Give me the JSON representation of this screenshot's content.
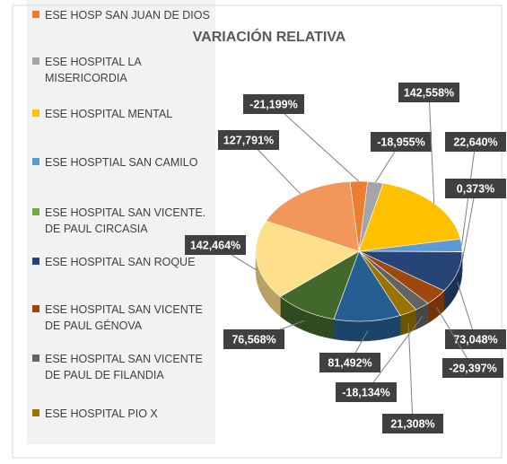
{
  "chart_data": {
    "type": "pie",
    "title": "VARIACIÓN RELATIVA",
    "categories": [
      "ESE HOSP SAN JUAN DE DIOS",
      "ESE HOSPITAL LA MISERICORDIA",
      "ESE HOSPITAL MENTAL",
      "ESE HOSPTIAL SAN CAMILO",
      "ESE HOSPITAL SAN VICENTE. DE PAUL CIRCASIA",
      "ESE HOSPITAL SAN ROQUE",
      "ESE HOSPITAL SAN VICENTE DE PAUL GÉNOVA",
      "ESE HOSPITAL SAN VICENTE DE PAUL DE FILANDIA",
      "ESE HOSPITAL PIO X",
      null,
      null,
      null,
      null
    ],
    "values": [
      -21.199,
      -18.955,
      142.558,
      22.64,
      0.373,
      73.048,
      -29.397,
      -18.134,
      21.308,
      81.492,
      76.568,
      142.464,
      127.791
    ],
    "value_labels": [
      "-21,199%",
      "-18,955%",
      "142,558%",
      "22,640%",
      "0,373%",
      "73,048%",
      "-29,397%",
      "-18,134%",
      "21,308%",
      "81,492%",
      "76,568%",
      "142,464%",
      "127,791%"
    ],
    "colors": [
      "#ED7D31",
      "#A5A5A5",
      "#FFC000",
      "#5B9BD5",
      "#70AD47",
      "#264478",
      "#9E480E",
      "#636363",
      "#997300",
      "#255E91",
      "#43682B",
      "#FFE08A",
      "#F1975A"
    ],
    "legend": "left"
  }
}
